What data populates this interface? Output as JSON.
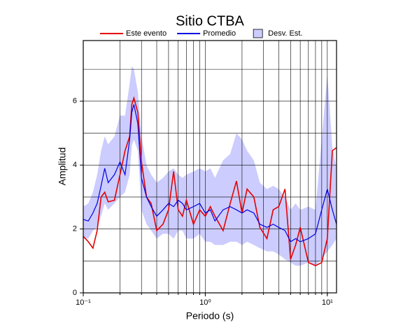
{
  "chart_data": {
    "type": "line",
    "title": "Sitio CTBA",
    "xlabel": "Periodo (s)",
    "ylabel": "Amplitud",
    "xlog": true,
    "grid": true,
    "legend": "top",
    "xlim": [
      0.1,
      11.9
    ],
    "ylim": [
      0,
      7.9
    ],
    "xticks": [
      {
        "value": 0.1,
        "label": "10⁻¹"
      },
      {
        "value": 1,
        "label": "10⁰"
      },
      {
        "value": 10,
        "label": "10¹"
      }
    ],
    "xgrid": [
      0.2,
      0.3,
      0.4,
      0.5,
      0.6,
      0.7,
      0.8,
      0.9,
      1,
      2,
      3,
      4,
      5,
      6,
      7,
      8,
      9,
      10
    ],
    "yticks": [
      0,
      2,
      4,
      6
    ],
    "ygrid": [
      1,
      2,
      3,
      4,
      5,
      6,
      7
    ],
    "x": [
      0.1,
      0.11,
      0.12,
      0.13,
      0.14,
      0.15,
      0.16,
      0.18,
      0.2,
      0.22,
      0.24,
      0.25,
      0.26,
      0.28,
      0.3,
      0.33,
      0.36,
      0.4,
      0.45,
      0.5,
      0.55,
      0.6,
      0.65,
      0.7,
      0.8,
      0.9,
      1.0,
      1.1,
      1.2,
      1.4,
      1.6,
      1.8,
      2.0,
      2.2,
      2.5,
      2.8,
      3.2,
      3.6,
      4.0,
      4.5,
      5.0,
      5.5,
      6.0,
      7.0,
      8.0,
      9.0,
      10,
      11,
      11.9
    ],
    "band": {
      "name": "Desv. Est.",
      "color": "#ccccff",
      "upper": [
        2.7,
        2.8,
        3.15,
        3.7,
        4.45,
        4.9,
        4.65,
        4.9,
        5.55,
        5.55,
        6.55,
        7.1,
        7.0,
        6.3,
        4.9,
        4.0,
        3.7,
        3.45,
        3.6,
        3.8,
        3.9,
        3.7,
        3.6,
        3.7,
        3.8,
        3.9,
        3.8,
        3.9,
        3.6,
        4.15,
        4.35,
        5.0,
        4.8,
        4.45,
        4.15,
        3.45,
        3.25,
        3.35,
        3.25,
        3.0,
        2.6,
        2.8,
        2.6,
        2.7,
        2.6,
        4.8,
        6.85,
        4.55,
        3.9
      ],
      "lower": [
        1.7,
        1.7,
        1.95,
        2.05,
        2.4,
        2.8,
        2.6,
        2.8,
        3.0,
        3.15,
        3.7,
        4.6,
        4.8,
        4.45,
        2.6,
        2.15,
        1.95,
        1.7,
        1.85,
        1.85,
        1.7,
        1.95,
        1.95,
        1.7,
        1.7,
        1.85,
        1.6,
        1.6,
        1.5,
        1.5,
        1.6,
        1.6,
        1.5,
        1.6,
        1.5,
        1.4,
        1.3,
        1.3,
        1.2,
        1.05,
        0.95,
        0.85,
        0.85,
        0.95,
        0.85,
        1.05,
        1.3,
        1.5,
        1.7
      ]
    },
    "series": [
      {
        "name": "Este evento",
        "color": "#e60000",
        "values": [
          1.77,
          1.6,
          1.4,
          1.95,
          3.0,
          3.15,
          2.85,
          2.9,
          3.7,
          4.45,
          4.9,
          5.9,
          6.1,
          5.65,
          4.1,
          3.0,
          2.8,
          1.95,
          2.15,
          2.6,
          3.8,
          2.6,
          2.4,
          2.9,
          2.15,
          2.6,
          2.4,
          2.7,
          2.4,
          1.95,
          2.8,
          3.5,
          2.5,
          3.25,
          3.0,
          2.05,
          1.7,
          2.6,
          2.7,
          3.25,
          1.05,
          1.5,
          2.05,
          0.95,
          0.85,
          0.95,
          1.7,
          4.45,
          4.55
        ]
      },
      {
        "name": "Promedio",
        "color": "#0000e0",
        "values": [
          2.3,
          2.25,
          2.5,
          2.8,
          3.35,
          3.9,
          3.45,
          3.7,
          4.1,
          3.7,
          4.8,
          5.65,
          5.9,
          5.3,
          3.6,
          3.0,
          2.7,
          2.4,
          2.6,
          2.8,
          2.7,
          2.9,
          2.8,
          2.6,
          2.7,
          2.8,
          2.5,
          2.6,
          2.25,
          2.6,
          2.7,
          2.6,
          2.5,
          2.6,
          2.5,
          2.15,
          2.05,
          2.15,
          2.05,
          1.95,
          1.6,
          1.7,
          1.6,
          1.7,
          1.85,
          2.6,
          3.25,
          2.6,
          2.15
        ]
      }
    ]
  }
}
